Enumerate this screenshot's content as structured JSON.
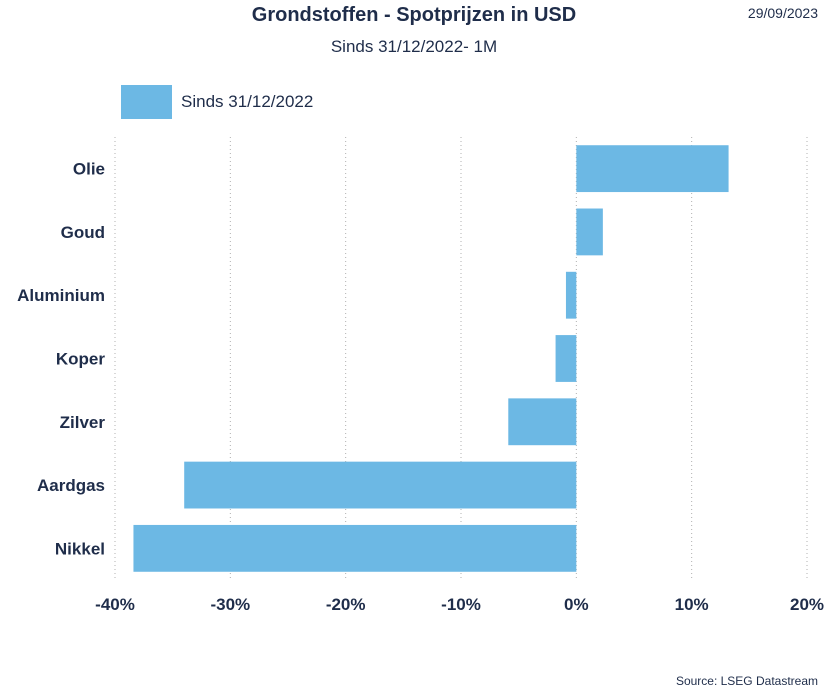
{
  "header": {
    "title": "Grondstoffen - Spotprijzen in USD",
    "subtitle": "Sinds 31/12/2022- 1M",
    "date": "29/09/2023"
  },
  "legend": {
    "label": "Sinds 31/12/2022",
    "color": "#6cb8e4"
  },
  "source": "Source: LSEG Datastream",
  "chart_data": {
    "type": "bar",
    "orientation": "horizontal",
    "categories": [
      "Olie",
      "Goud",
      "Aluminium",
      "Koper",
      "Zilver",
      "Aardgas",
      "Nikkel"
    ],
    "series": [
      {
        "name": "Sinds 31/12/2022",
        "values": [
          13.2,
          2.3,
          -0.9,
          -1.8,
          -5.9,
          -34.0,
          -38.4
        ],
        "color": "#6cb8e4"
      }
    ],
    "xlim": [
      -40,
      20
    ],
    "xticks": [
      -40,
      -30,
      -20,
      -10,
      0,
      10,
      20
    ],
    "xtick_labels": [
      "-40%",
      "-30%",
      "-20%",
      "-10%",
      "0%",
      "10%",
      "20%"
    ],
    "grid": "vertical-dotted",
    "legend_position": "top-left"
  }
}
